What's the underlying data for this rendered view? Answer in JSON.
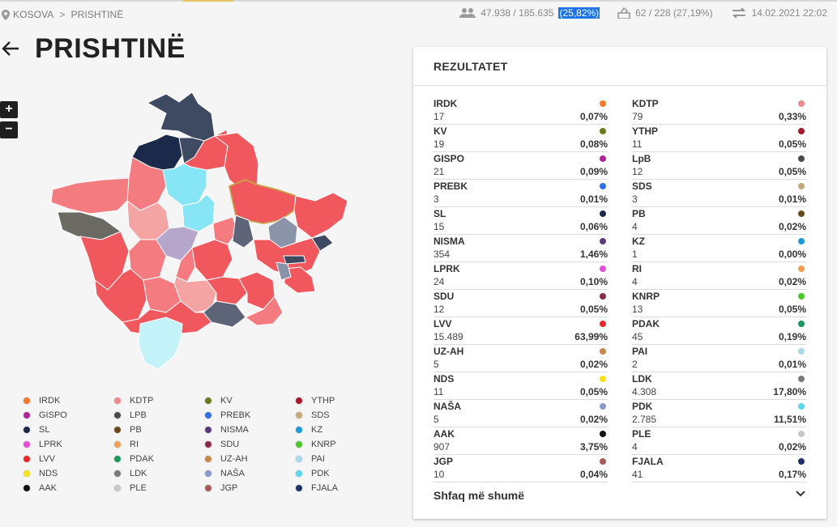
{
  "breadcrumb": {
    "root": "KOSOVA",
    "separator": ">",
    "current": "PRISHTINË"
  },
  "stats": {
    "voters": "47.938 / 185.635",
    "voters_pct": "(25,82%)",
    "stations": "62 / 228 (27,19%)",
    "updated": "14.02.2021 22:02"
  },
  "page_title": "PRISHTINË",
  "zoom": {
    "in": "+",
    "out": "−"
  },
  "results": {
    "title": "REZULTATET",
    "more_label": "Shfaq më shumë",
    "parties_left": [
      {
        "name": "IRDK",
        "votes": "17",
        "pct": "0,07%",
        "color": "#f07a2a"
      },
      {
        "name": "KV",
        "votes": "19",
        "pct": "0,08%",
        "color": "#6b7a1e"
      },
      {
        "name": "GISPO",
        "votes": "21",
        "pct": "0,09%",
        "color": "#b0269a"
      },
      {
        "name": "PREBK",
        "votes": "3",
        "pct": "0,01%",
        "color": "#2f6fe8"
      },
      {
        "name": "SL",
        "votes": "15",
        "pct": "0,06%",
        "color": "#1b2a4a"
      },
      {
        "name": "NISMA",
        "votes": "354",
        "pct": "1,46%",
        "color": "#5a3a7a"
      },
      {
        "name": "LPRK",
        "votes": "24",
        "pct": "0,10%",
        "color": "#e84fd8"
      },
      {
        "name": "SDU",
        "votes": "12",
        "pct": "0,05%",
        "color": "#8a2a4a"
      },
      {
        "name": "LVV",
        "votes": "15.489",
        "pct": "63,99%",
        "color": "#e8282a"
      },
      {
        "name": "UZ-AH",
        "votes": "5",
        "pct": "0,02%",
        "color": "#c8884a"
      },
      {
        "name": "NDS",
        "votes": "11",
        "pct": "0,05%",
        "color": "#f5e21a"
      },
      {
        "name": "NAŠA",
        "votes": "5",
        "pct": "0,02%",
        "color": "#8a9ac8"
      },
      {
        "name": "AAK",
        "votes": "907",
        "pct": "3,75%",
        "color": "#111111"
      },
      {
        "name": "JGP",
        "votes": "10",
        "pct": "0,04%",
        "color": "#a85a5a"
      }
    ],
    "parties_right": [
      {
        "name": "KDTP",
        "votes": "79",
        "pct": "0,33%",
        "color": "#f08a8a"
      },
      {
        "name": "YTHP",
        "votes": "11",
        "pct": "0,05%",
        "color": "#a8182a"
      },
      {
        "name": "LpB",
        "votes": "12",
        "pct": "0,05%",
        "color": "#4a4a4a"
      },
      {
        "name": "SDS",
        "votes": "3",
        "pct": "0,01%",
        "color": "#c8a87a"
      },
      {
        "name": "PB",
        "votes": "4",
        "pct": "0,02%",
        "color": "#6a4a1a"
      },
      {
        "name": "KZ",
        "votes": "1",
        "pct": "0,00%",
        "color": "#1a9ad8"
      },
      {
        "name": "RI",
        "votes": "4",
        "pct": "0,02%",
        "color": "#f0a050"
      },
      {
        "name": "KNRP",
        "votes": "13",
        "pct": "0,05%",
        "color": "#4ac82a"
      },
      {
        "name": "PDAK",
        "votes": "45",
        "pct": "0,19%",
        "color": "#1a9a5a"
      },
      {
        "name": "PAI",
        "votes": "2",
        "pct": "0,01%",
        "color": "#a8d8f0"
      },
      {
        "name": "LDK",
        "votes": "4.308",
        "pct": "17,80%",
        "color": "#7a7a7a"
      },
      {
        "name": "PDK",
        "votes": "2.785",
        "pct": "11,51%",
        "color": "#5ad8ea"
      },
      {
        "name": "PLE",
        "votes": "4",
        "pct": "0,02%",
        "color": "#c8c8c8"
      },
      {
        "name": "FJALA",
        "votes": "41",
        "pct": "0,17%",
        "color": "#1f2f6a"
      }
    ]
  },
  "legend": [
    {
      "label": "IRDK",
      "color": "#f07a2a"
    },
    {
      "label": "KDTP",
      "color": "#f08a8a"
    },
    {
      "label": "KV",
      "color": "#6b7a1e"
    },
    {
      "label": "YTHP",
      "color": "#a8182a"
    },
    {
      "label": "GISPO",
      "color": "#b0269a"
    },
    {
      "label": "LPB",
      "color": "#4a4a4a"
    },
    {
      "label": "PREBK",
      "color": "#2f6fe8"
    },
    {
      "label": "SDS",
      "color": "#c8a87a"
    },
    {
      "label": "SL",
      "color": "#1b2a4a"
    },
    {
      "label": "PB",
      "color": "#6a4a1a"
    },
    {
      "label": "NISMA",
      "color": "#5a3a7a"
    },
    {
      "label": "KZ",
      "color": "#1a9ad8"
    },
    {
      "label": "LPRK",
      "color": "#e84fd8"
    },
    {
      "label": "RI",
      "color": "#f0a050"
    },
    {
      "label": "SDU",
      "color": "#8a2a4a"
    },
    {
      "label": "KNRP",
      "color": "#4ac82a"
    },
    {
      "label": "LVV",
      "color": "#e8282a"
    },
    {
      "label": "PDAK",
      "color": "#1a9a5a"
    },
    {
      "label": "UZ-AH",
      "color": "#c8884a"
    },
    {
      "label": "PAI",
      "color": "#a8d8f0"
    },
    {
      "label": "NDS",
      "color": "#f5e21a"
    },
    {
      "label": "LDK",
      "color": "#7a7a7a"
    },
    {
      "label": "NAŠA",
      "color": "#8a9ac8"
    },
    {
      "label": "PDK",
      "color": "#5ad8ea"
    },
    {
      "label": "AAK",
      "color": "#111111"
    },
    {
      "label": "PLE",
      "color": "#c8c8c8"
    },
    {
      "label": "JGP",
      "color": "#a85a5a"
    },
    {
      "label": "FJALA",
      "color": "#1f2f6a"
    }
  ],
  "map": {
    "region_colors": {
      "lvv": "#f0585e",
      "lvv_light": "#f47b7f",
      "lvv_pale": "#f5a4a4",
      "pdk": "#86e6f5",
      "pdk_pale": "#c4f2f9",
      "ldk": "#5d6478",
      "ldk_grey": "#8a93a8",
      "sl": "#1b2a4a",
      "dark": "#3e4a62",
      "aak": "#6a6a62",
      "nisma": "#b7a6cc",
      "highlight": "#c9a24a"
    }
  }
}
